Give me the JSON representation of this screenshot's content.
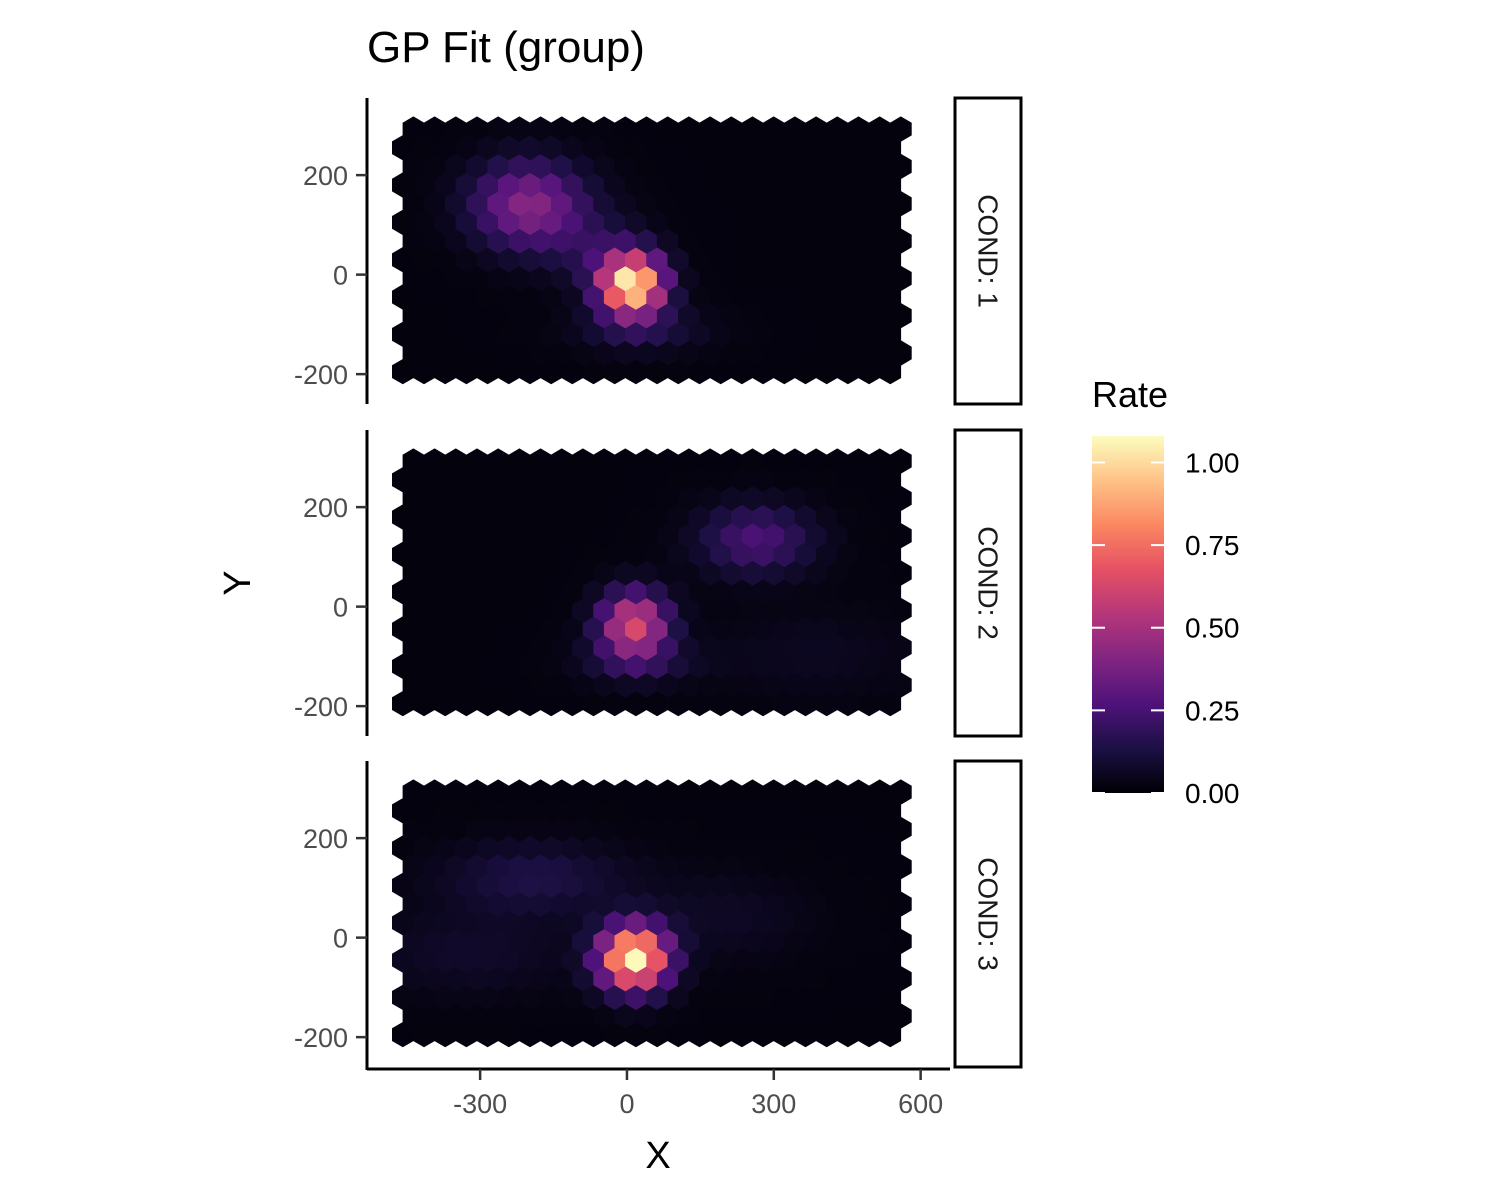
{
  "chart_data": {
    "type": "heatmap",
    "geometry": "hexbin",
    "title": "GP Fit (group)",
    "xlabel": "X",
    "ylabel": "Y",
    "xlim": [
      -525,
      660
    ],
    "ylim": [
      -260,
      355
    ],
    "x_ticks": [
      -300,
      0,
      300,
      600
    ],
    "y_ticks": [
      -200,
      0,
      200
    ],
    "hex_size": 25,
    "hex_x_range": [
      -458,
      562
    ],
    "hex_y_range": [
      -195,
      312
    ],
    "facet_label_prefix": "COND: ",
    "panels": [
      {
        "label": "COND: 1",
        "background_rate": 0.02,
        "blobs": [
          {
            "x": 10,
            "y": -20,
            "amp": 1.05,
            "sx": 45,
            "sy": 42
          },
          {
            "x": -200,
            "y": 140,
            "amp": 0.4,
            "sx": 80,
            "sy": 60
          },
          {
            "x": 30,
            "y": -110,
            "amp": 0.12,
            "sx": 90,
            "sy": 30
          },
          {
            "x": -60,
            "y": 50,
            "amp": 0.12,
            "sx": 70,
            "sy": 50
          }
        ]
      },
      {
        "label": "COND: 2",
        "background_rate": 0.02,
        "blobs": [
          {
            "x": 15,
            "y": -35,
            "amp": 0.62,
            "sx": 48,
            "sy": 45
          },
          {
            "x": 265,
            "y": 135,
            "amp": 0.24,
            "sx": 80,
            "sy": 48
          },
          {
            "x": 380,
            "y": -95,
            "amp": 0.04,
            "sx": 150,
            "sy": 60
          },
          {
            "x": 20,
            "y": -110,
            "amp": 0.12,
            "sx": 80,
            "sy": 30
          }
        ]
      },
      {
        "label": "COND: 3",
        "background_rate": 0.02,
        "blobs": [
          {
            "x": 15,
            "y": -40,
            "amp": 1.05,
            "sx": 48,
            "sy": 44
          },
          {
            "x": -190,
            "y": 120,
            "amp": 0.12,
            "sx": 130,
            "sy": 50
          },
          {
            "x": -320,
            "y": -30,
            "amp": 0.06,
            "sx": 150,
            "sy": 60
          },
          {
            "x": 200,
            "y": 40,
            "amp": 0.05,
            "sx": 120,
            "sy": 60
          }
        ]
      }
    ],
    "legend": {
      "title": "Rate",
      "position": "right",
      "ticks": [
        0.0,
        0.25,
        0.5,
        0.75,
        1.0
      ],
      "tick_labels": [
        "0.00",
        "0.25",
        "0.50",
        "0.75",
        "1.00"
      ],
      "range": [
        0,
        1.08
      ],
      "palette": "magma",
      "colors": [
        "#000004",
        "#1c1044",
        "#4f127b",
        "#812581",
        "#b5367a",
        "#e55064",
        "#fb8761",
        "#fec287",
        "#fcfdbf"
      ]
    },
    "grid": false
  }
}
